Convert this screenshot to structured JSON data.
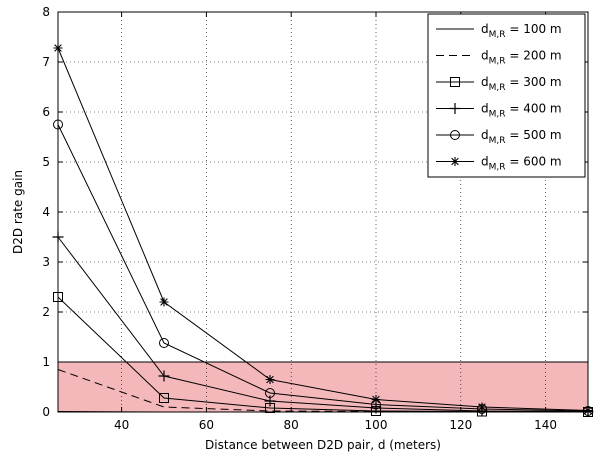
{
  "chart_data": {
    "type": "line",
    "xlabel": "Distance between D2D pair, d (meters)",
    "ylabel": "D2D rate gain",
    "xlim": [
      25,
      150
    ],
    "ylim": [
      0,
      8
    ],
    "xticks": [
      40,
      60,
      80,
      100,
      120,
      140
    ],
    "yticks": [
      0,
      1,
      2,
      3,
      4,
      5,
      6,
      7,
      8
    ],
    "grid": true,
    "grid_style": "dotted",
    "legend_placement": "top-right",
    "shaded_band": {
      "y_from": 0,
      "y_to": 1,
      "color": "#f4b8bb",
      "edge_color": "#000000"
    },
    "line_color": "#000000",
    "x": [
      25,
      50,
      75,
      100,
      125,
      150
    ],
    "series": [
      {
        "name_main": "d",
        "name_sub": "M,R",
        "name_tail": " = 100 m",
        "style": "solid",
        "marker": "none",
        "values": [
          0.01,
          0.0,
          0.0,
          0.0,
          0.0,
          0.0
        ]
      },
      {
        "name_main": "d",
        "name_sub": "M,R",
        "name_tail": " = 200 m",
        "style": "dashed",
        "marker": "none",
        "values": [
          0.85,
          0.1,
          0.02,
          0.01,
          0.0,
          0.0
        ]
      },
      {
        "name_main": "d",
        "name_sub": "M,R",
        "name_tail": " = 300 m",
        "style": "solid",
        "marker": "square",
        "values": [
          2.3,
          0.28,
          0.08,
          0.02,
          0.01,
          0.0
        ]
      },
      {
        "name_main": "d",
        "name_sub": "M,R",
        "name_tail": " = 400 m",
        "style": "solid",
        "marker": "plus",
        "values": [
          3.5,
          0.72,
          0.22,
          0.08,
          0.02,
          0.01
        ]
      },
      {
        "name_main": "d",
        "name_sub": "M,R",
        "name_tail": " = 500 m",
        "style": "solid",
        "marker": "circle",
        "values": [
          5.75,
          1.38,
          0.38,
          0.15,
          0.06,
          0.02
        ]
      },
      {
        "name_main": "d",
        "name_sub": "M,R",
        "name_tail": " = 600 m",
        "style": "solid",
        "marker": "star",
        "values": [
          7.28,
          2.2,
          0.65,
          0.25,
          0.1,
          0.03
        ]
      }
    ]
  }
}
